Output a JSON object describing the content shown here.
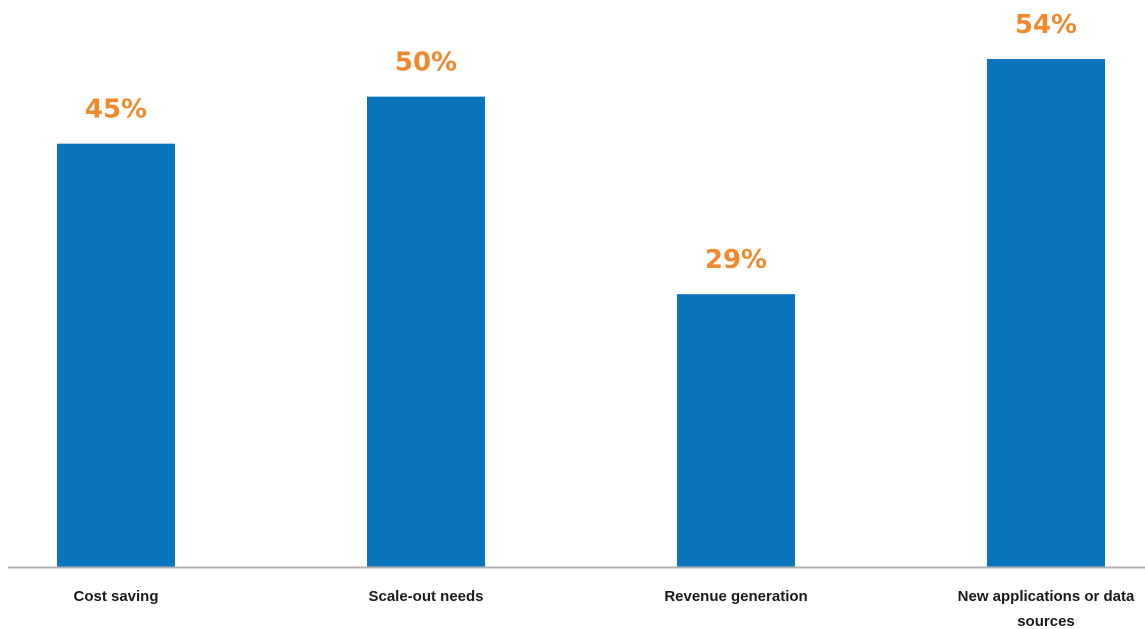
{
  "colors": {
    "bar": "#0a75bc",
    "value_label": "#f0892c",
    "axis": "#b0b0b0",
    "category_label": "#1a1a1a"
  },
  "chart_data": {
    "type": "bar",
    "title": "",
    "xlabel": "",
    "ylabel": "",
    "ylim": [
      0,
      54
    ],
    "grid": false,
    "legend": "none",
    "categories": [
      [
        "Cost saving"
      ],
      [
        "Scale-out needs"
      ],
      [
        "Revenue generation"
      ],
      [
        "New applications or data",
        "sources"
      ]
    ],
    "values": [
      45,
      50,
      29,
      54
    ],
    "value_labels": [
      "45%",
      "50%",
      "29%",
      "54%"
    ]
  }
}
